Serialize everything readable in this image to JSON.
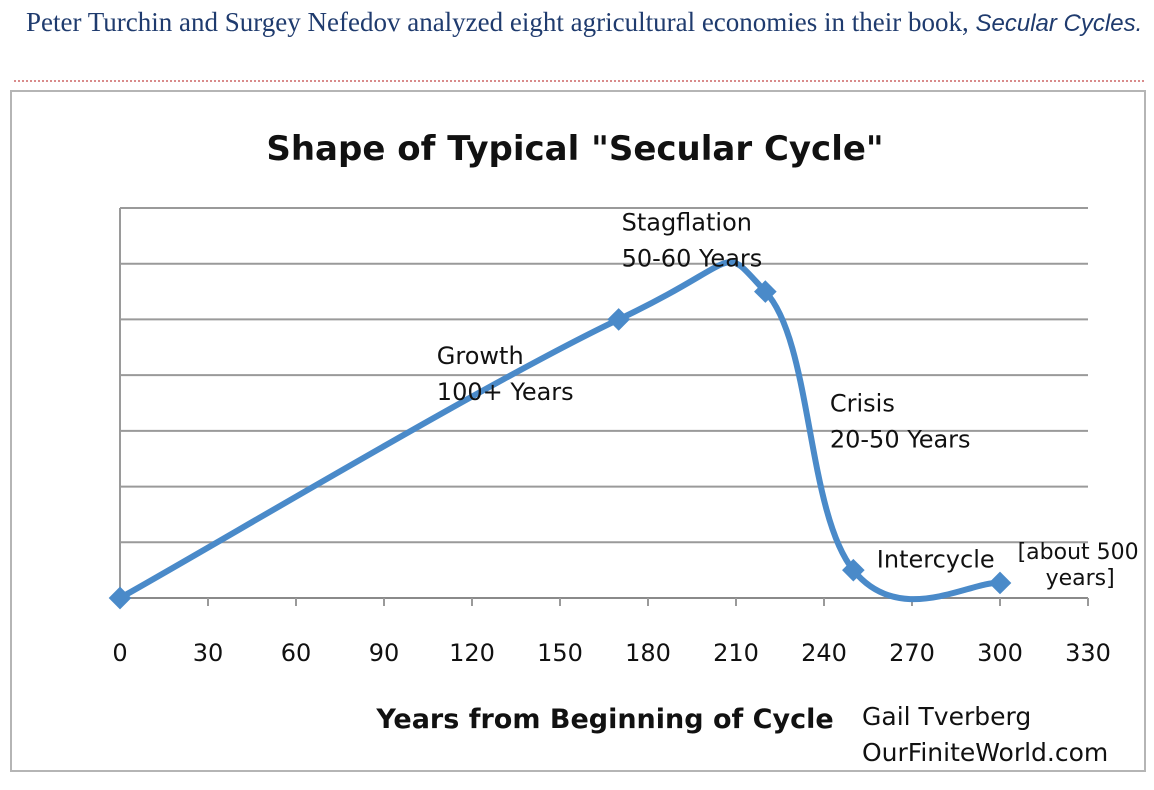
{
  "caption": {
    "text": "Peter Turchin and Surgey Nefedov analyzed eight agricultural economies in their book,",
    "book": "Secular Cycles."
  },
  "chart_data": {
    "type": "line",
    "title": "Shape of Typical \"Secular Cycle\"",
    "xlabel": "Years from Beginning of Cycle",
    "ylabel": "",
    "xlim": [
      0,
      330
    ],
    "ylim": [
      0,
      7
    ],
    "xticks": [
      0,
      30,
      60,
      90,
      120,
      150,
      180,
      210,
      240,
      270,
      300,
      330
    ],
    "grid": true,
    "smooth": true,
    "series": [
      {
        "name": "Secular cycle",
        "color": "#4a8ac9",
        "x": [
          0,
          170,
          220,
          250,
          300
        ],
        "y": [
          0,
          5,
          5.5,
          0.5,
          0.27
        ]
      }
    ],
    "annotations": [
      {
        "lines": [
          "Growth",
          "100+ Years"
        ],
        "x": 108,
        "y": 4.2
      },
      {
        "lines": [
          "Stagflation",
          "50-60 Years"
        ],
        "x": 171,
        "y": 6.6
      },
      {
        "lines": [
          "Crisis",
          "20-50 Years"
        ],
        "x": 242,
        "y": 3.35
      },
      {
        "lines": [
          "Intercycle"
        ],
        "x": 258,
        "y": 0.55
      },
      {
        "lines": [
          "[about 500",
          "years]"
        ],
        "x": 306,
        "y": 0.7
      }
    ],
    "credit": [
      "Gail Tverberg",
      "OurFiniteWorld.com"
    ]
  }
}
